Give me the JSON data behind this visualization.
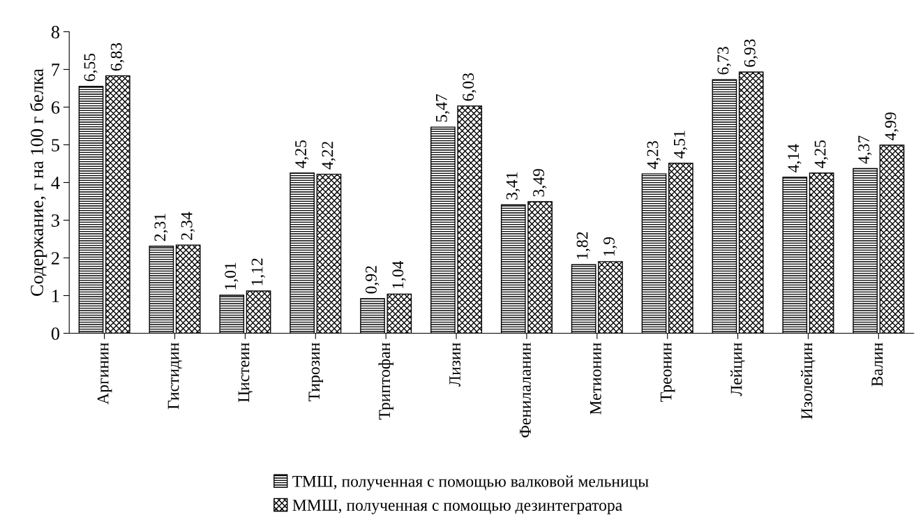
{
  "chart_data": {
    "type": "bar",
    "ylabel": "Содержание, г на 100 г белка",
    "categories": [
      "Аргинин",
      "Гистидин",
      "Цистеин",
      "Тирозин",
      "Триптофан",
      "Лизин",
      "Фенилаланин",
      "Метионин",
      "Треонин",
      "Лейцин",
      "Изолейцин",
      "Валин"
    ],
    "series": [
      {
        "name": "ТМШ, полученная с помощью валковой мельницы",
        "color": "#000000",
        "values": [
          6.55,
          2.31,
          1.01,
          4.25,
          0.92,
          5.47,
          3.41,
          1.82,
          4.23,
          6.73,
          4.14,
          4.37
        ],
        "value_labels": [
          "6,55",
          "2,31",
          "1,01",
          "4,25",
          "0,92",
          "5,47",
          "3,41",
          "1,82",
          "4,23",
          "6,73",
          "4,14",
          "4,37"
        ]
      },
      {
        "name": "ММШ, полученная с помощью дезинтегратора",
        "color": "#000000",
        "values": [
          6.83,
          2.34,
          1.12,
          4.22,
          1.04,
          6.03,
          3.49,
          1.9,
          4.51,
          6.93,
          4.25,
          4.99
        ],
        "value_labels": [
          "6,83",
          "2,34",
          "1,12",
          "4,22",
          "1,04",
          "6,03",
          "3,49",
          "1,9",
          "4,51",
          "6,93",
          "4,25",
          "4,99"
        ]
      }
    ],
    "ylim": [
      0,
      8
    ],
    "yticks": [
      0,
      1,
      2,
      3,
      4,
      5,
      6,
      7,
      8
    ],
    "grid": false,
    "legend": "bottom"
  }
}
